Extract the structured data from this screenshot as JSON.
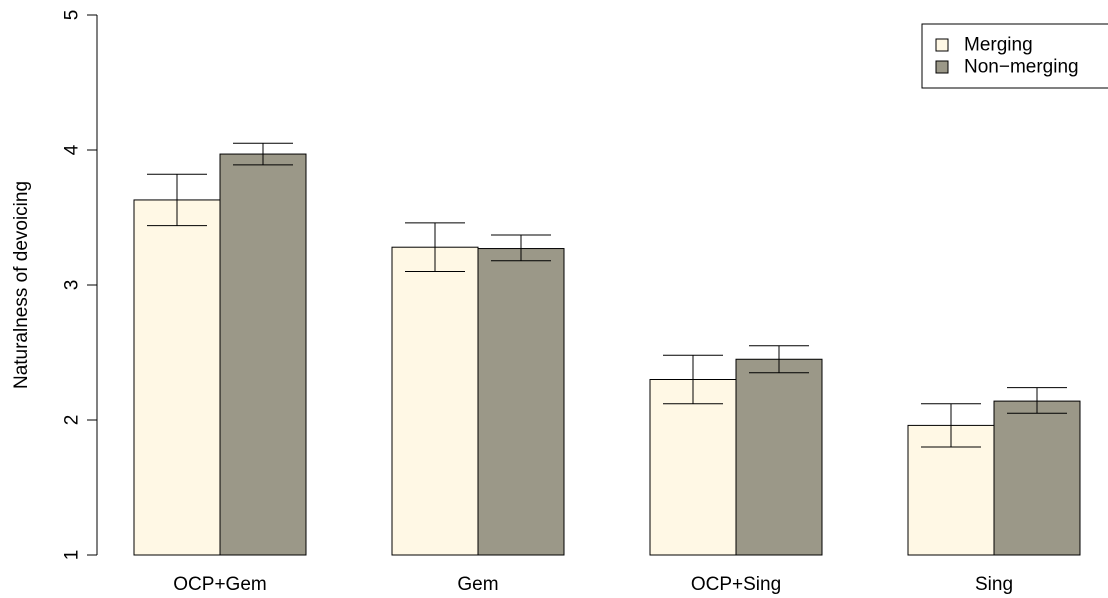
{
  "chart_data": {
    "type": "bar",
    "title": "",
    "xlabel": "",
    "ylabel": "Naturalness of devoicing",
    "ylim": [
      1,
      5
    ],
    "yticks": [
      1,
      2,
      3,
      4,
      5
    ],
    "grid": false,
    "legend_position": "top-right",
    "categories": [
      "OCP+Gem",
      "Gem",
      "OCP+Sing",
      "Sing"
    ],
    "series": [
      {
        "name": "Merging",
        "color": "#FFF8E5",
        "values": [
          3.63,
          3.28,
          2.3,
          1.96
        ],
        "error_low": [
          3.44,
          3.1,
          2.12,
          1.8
        ],
        "error_high": [
          3.82,
          3.46,
          2.48,
          2.12
        ]
      },
      {
        "name": "Non−merging",
        "color": "#9B9888",
        "values": [
          3.97,
          3.27,
          2.45,
          2.14
        ],
        "error_low": [
          3.89,
          3.18,
          2.35,
          2.05
        ],
        "error_high": [
          4.05,
          3.37,
          2.55,
          2.24
        ]
      }
    ]
  }
}
